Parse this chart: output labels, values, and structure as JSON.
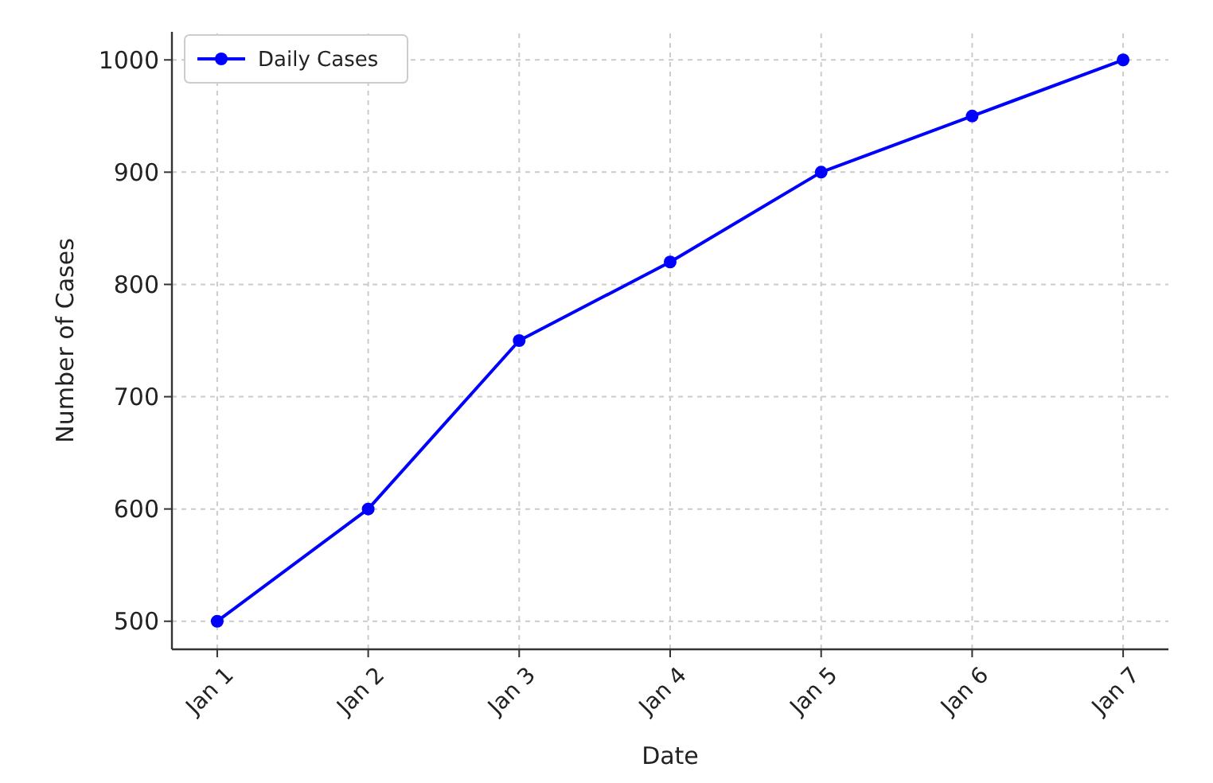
{
  "chart_data": {
    "type": "line",
    "xlabel": "Date",
    "ylabel": "Number of Cases",
    "categories": [
      "Jan 1",
      "Jan 2",
      "Jan 3",
      "Jan 4",
      "Jan 5",
      "Jan 6",
      "Jan 7"
    ],
    "series": [
      {
        "name": "Daily Cases",
        "color": "#0000ff",
        "values": [
          500,
          600,
          750,
          820,
          900,
          950,
          1000
        ]
      }
    ],
    "ylim": [
      475,
      1025
    ],
    "yticks": [
      500,
      600,
      700,
      800,
      900,
      1000
    ],
    "grid": true,
    "legend": "top left",
    "marker": "circle",
    "line_style": "solid"
  }
}
